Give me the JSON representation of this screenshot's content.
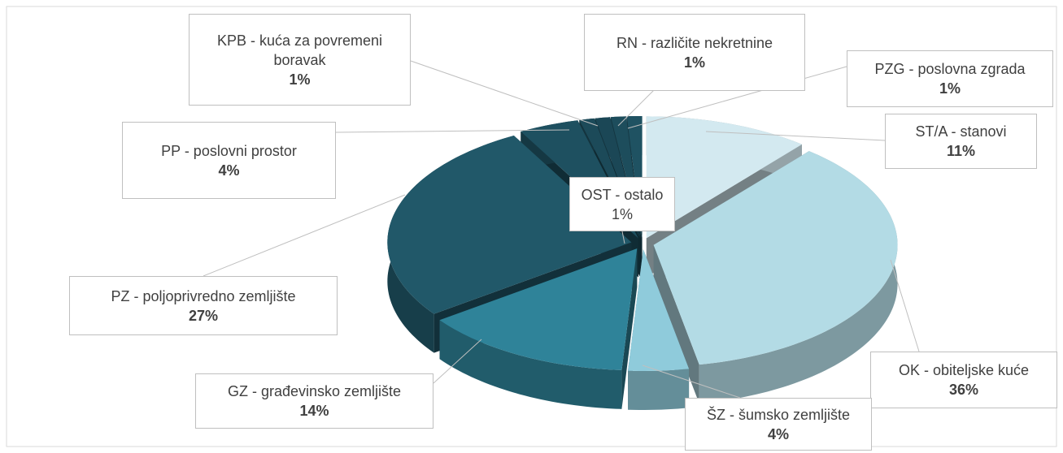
{
  "chart_data": {
    "type": "pie",
    "categories": [
      "ST/A - stanovi",
      "OK - obiteljske kuće",
      "ŠZ - šumsko zemljište",
      "GZ - građevinsko zemljište",
      "PZ - poljoprivredno zemljište",
      "PP - poslovni prostor",
      "KPB - kuća za povremeni boravak",
      "OST - ostalo",
      "RN - različite nekretnine",
      "PZG - poslovna zgrada"
    ],
    "values": [
      11,
      36,
      4,
      14,
      27,
      4,
      1,
      1,
      1,
      1
    ],
    "value_labels": [
      "11%",
      "36%",
      "4%",
      "14%",
      "27%",
      "4%",
      "1%",
      "1%",
      "1%",
      "1%"
    ],
    "colors": [
      "#d3e9f0",
      "#b3dbe5",
      "#8fcbdb",
      "#2f8399",
      "#215869",
      "#1e5060",
      "#1c4a59",
      "#1b4756",
      "#1d4d5c",
      "#1f5262"
    ]
  }
}
